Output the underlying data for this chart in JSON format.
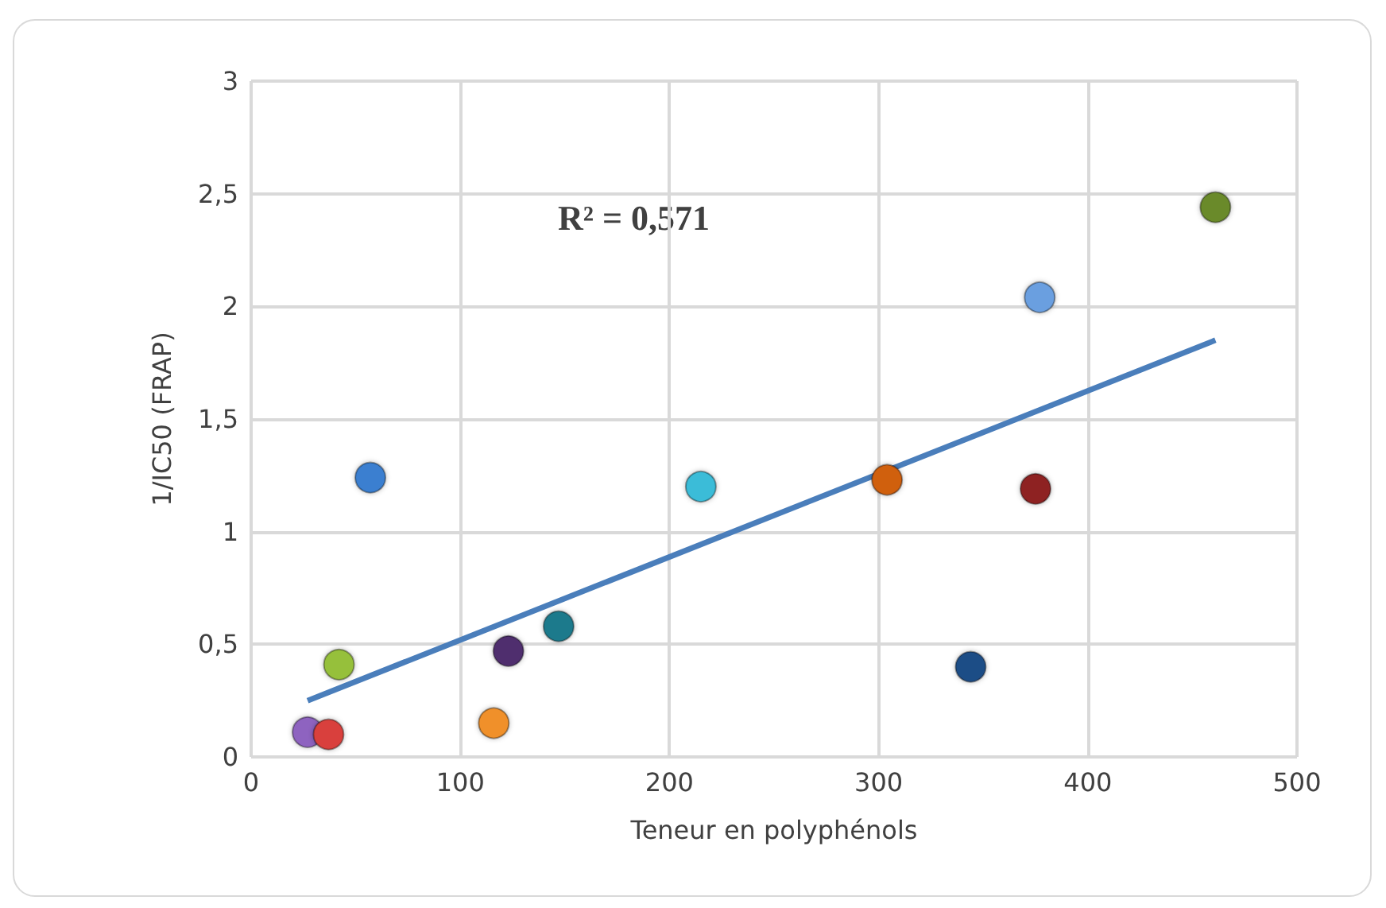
{
  "chart_data": {
    "type": "scatter",
    "xlabel": "Teneur en polyphénols",
    "ylabel": "1/IC50 (FRAP)",
    "annotations": [
      "R² = 0,571"
    ],
    "series": [
      {
        "marker": "circle",
        "x": [
          27,
          37,
          42,
          57,
          116,
          123,
          147,
          215,
          304,
          344,
          375,
          377,
          461
        ],
        "values": [
          0.11,
          0.1,
          0.41,
          1.24,
          0.15,
          0.47,
          0.58,
          1.2,
          1.23,
          0.4,
          1.19,
          2.04,
          2.44
        ],
        "colors": [
          "#8e63c0",
          "#d9413c",
          "#96c03a",
          "#3a7fd0",
          "#f0902a",
          "#4f2f6e",
          "#1d7a8c",
          "#3bbcd8",
          "#d0600e",
          "#1f4d86",
          "#8e2222",
          "#6a9fe0",
          "#6a8a2a"
        ]
      },
      {
        "type": "line",
        "color": "#4a7ebb",
        "x": [
          27,
          461
        ],
        "values": [
          0.25,
          1.85
        ]
      }
    ],
    "xlim": [
      0,
      500
    ],
    "xticks": [
      0,
      100,
      200,
      300,
      400,
      500
    ],
    "ylim": [
      0,
      3
    ],
    "yticks": [
      {
        "value": 0,
        "label": "0"
      },
      {
        "value": 0.5,
        "label": "0,5"
      },
      {
        "value": 1,
        "label": "1"
      },
      {
        "value": 1.5,
        "label": "1,5"
      },
      {
        "value": 2,
        "label": "2"
      },
      {
        "value": 2.5,
        "label": "2,5"
      },
      {
        "value": 3,
        "label": "3"
      }
    ],
    "grid": true
  }
}
